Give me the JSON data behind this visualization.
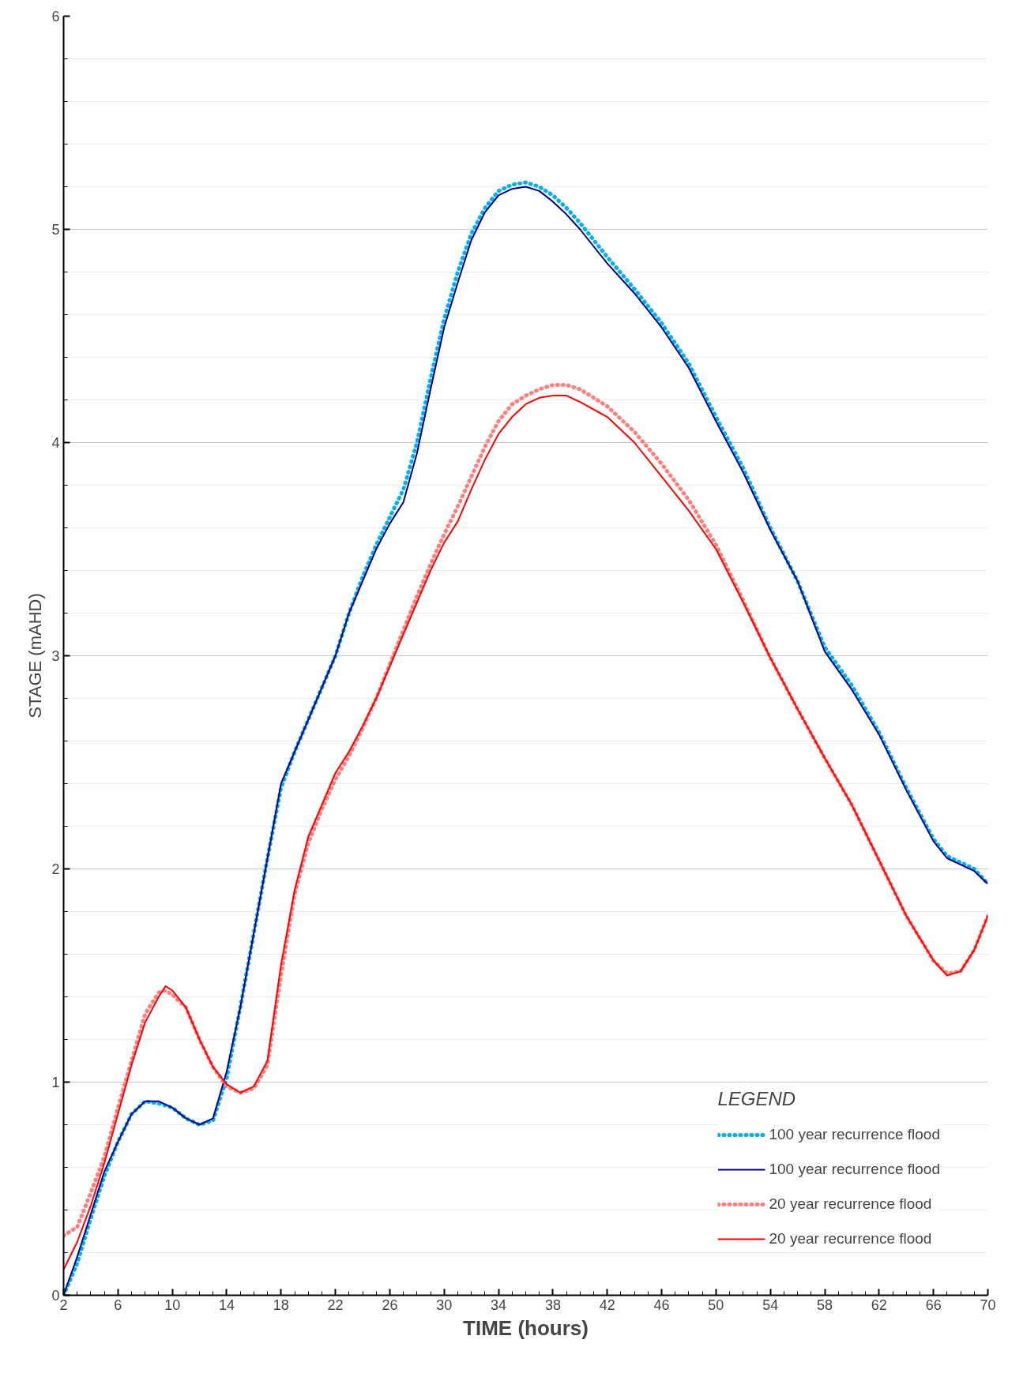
{
  "chart_data": {
    "type": "line",
    "xlabel": "TIME (hours)",
    "ylabel": "STAGE (mAHD)",
    "legend_title": "LEGEND",
    "legend": "bottom right",
    "grid": "y",
    "marker": "none",
    "xlim": [
      2,
      70
    ],
    "ylim": [
      0,
      6
    ],
    "xticks": [
      2,
      {
        "value": 3,
        "label": null
      },
      {
        "value": 4,
        "label": null
      },
      {
        "value": 5,
        "label": null
      },
      6,
      {
        "value": 7,
        "label": null
      },
      {
        "value": 8,
        "label": null
      },
      {
        "value": 9,
        "label": null
      },
      10,
      {
        "value": 11,
        "label": null
      },
      {
        "value": 12,
        "label": null
      },
      {
        "value": 13,
        "label": null
      },
      14,
      {
        "value": 15,
        "label": null
      },
      {
        "value": 16,
        "label": null
      },
      {
        "value": 17,
        "label": null
      },
      18,
      {
        "value": 19,
        "label": null
      },
      {
        "value": 20,
        "label": null
      },
      {
        "value": 21,
        "label": null
      },
      22,
      {
        "value": 23,
        "label": null
      },
      {
        "value": 24,
        "label": null
      },
      {
        "value": 25,
        "label": null
      },
      26,
      {
        "value": 27,
        "label": null
      },
      {
        "value": 28,
        "label": null
      },
      {
        "value": 29,
        "label": null
      },
      30,
      {
        "value": 31,
        "label": null
      },
      {
        "value": 32,
        "label": null
      },
      {
        "value": 33,
        "label": null
      },
      34,
      {
        "value": 35,
        "label": null
      },
      {
        "value": 36,
        "label": null
      },
      {
        "value": 37,
        "label": null
      },
      38,
      {
        "value": 39,
        "label": null
      },
      {
        "value": 40,
        "label": null
      },
      {
        "value": 41,
        "label": null
      },
      42,
      {
        "value": 43,
        "label": null
      },
      {
        "value": 44,
        "label": null
      },
      {
        "value": 45,
        "label": null
      },
      46,
      {
        "value": 47,
        "label": null
      },
      {
        "value": 48,
        "label": null
      },
      {
        "value": 49,
        "label": null
      },
      50,
      {
        "value": 51,
        "label": null
      },
      {
        "value": 52,
        "label": null
      },
      {
        "value": 53,
        "label": null
      },
      54,
      {
        "value": 55,
        "label": null
      },
      {
        "value": 56,
        "label": null
      },
      {
        "value": 57,
        "label": null
      },
      58,
      {
        "value": 59,
        "label": null
      },
      {
        "value": 60,
        "label": null
      },
      {
        "value": 61,
        "label": null
      },
      62,
      {
        "value": 63,
        "label": null
      },
      {
        "value": 64,
        "label": null
      },
      {
        "value": 65,
        "label": null
      },
      66,
      {
        "value": 67,
        "label": null
      },
      {
        "value": 68,
        "label": null
      },
      {
        "value": 69,
        "label": null
      },
      70
    ],
    "yticks": [
      0,
      {
        "value": 0.2,
        "label": null
      },
      {
        "value": 0.4,
        "label": null
      },
      {
        "value": 0.6,
        "label": null
      },
      {
        "value": 0.8,
        "label": null
      },
      1,
      {
        "value": 1.2,
        "label": null
      },
      {
        "value": 1.4,
        "label": null
      },
      {
        "value": 1.6,
        "label": null
      },
      {
        "value": 1.8,
        "label": null
      },
      2,
      {
        "value": 2.2,
        "label": null
      },
      {
        "value": 2.4,
        "label": null
      },
      {
        "value": 2.6,
        "label": null
      },
      {
        "value": 2.8,
        "label": null
      },
      3,
      {
        "value": 3.2,
        "label": null
      },
      {
        "value": 3.4,
        "label": null
      },
      {
        "value": 3.6,
        "label": null
      },
      {
        "value": 3.8,
        "label": null
      },
      4,
      {
        "value": 4.2,
        "label": null
      },
      {
        "value": 4.4,
        "label": null
      },
      {
        "value": 4.6,
        "label": null
      },
      {
        "value": 4.8,
        "label": null
      },
      5,
      {
        "value": 5.2,
        "label": null
      },
      {
        "value": 5.4,
        "label": null
      },
      {
        "value": 5.6,
        "label": null
      },
      {
        "value": 5.8,
        "label": null
      },
      6
    ],
    "series": [
      {
        "name": "100 year recurrence flood",
        "color": "#00b0f0",
        "line_style": "dotted",
        "x": [
          2,
          3,
          4,
          5,
          6,
          7,
          8,
          9,
          10,
          11,
          12,
          13,
          14,
          15,
          16,
          17,
          18,
          19,
          20,
          21,
          22,
          23,
          24,
          25,
          26,
          27,
          28,
          29,
          30,
          31,
          32,
          33,
          34,
          35,
          36,
          37,
          38,
          39,
          40,
          42,
          44,
          46,
          48,
          50,
          52,
          54,
          56,
          58,
          60,
          62,
          64,
          66,
          67,
          68,
          69,
          70
        ],
        "values": [
          0,
          0.15,
          0.36,
          0.56,
          0.72,
          0.85,
          0.91,
          0.9,
          0.88,
          0.83,
          0.8,
          0.82,
          1.02,
          1.35,
          1.7,
          2.05,
          2.38,
          2.55,
          2.7,
          2.85,
          3.0,
          3.2,
          3.37,
          3.52,
          3.65,
          3.78,
          4.0,
          4.3,
          4.58,
          4.8,
          4.98,
          5.1,
          5.18,
          5.21,
          5.22,
          5.2,
          5.16,
          5.1,
          5.03,
          4.87,
          4.72,
          4.56,
          4.37,
          4.12,
          3.88,
          3.6,
          3.35,
          3.04,
          2.86,
          2.64,
          2.38,
          2.14,
          2.06,
          2.03,
          2.0,
          1.93
        ]
      },
      {
        "name": "100 year recurrence flood",
        "color": "#000080",
        "line_style": "solid",
        "x": [
          2,
          3,
          4,
          5,
          6,
          7,
          8,
          9,
          10,
          11,
          12,
          13,
          14,
          15,
          16,
          17,
          18,
          19,
          20,
          21,
          22,
          23,
          24,
          25,
          26,
          27,
          28,
          29,
          30,
          31,
          32,
          33,
          34,
          35,
          36,
          37,
          38,
          39,
          40,
          42,
          44,
          46,
          48,
          50,
          52,
          54,
          56,
          58,
          60,
          62,
          64,
          66,
          67,
          68,
          69,
          70
        ],
        "values": [
          0,
          0.18,
          0.38,
          0.58,
          0.72,
          0.85,
          0.91,
          0.91,
          0.88,
          0.83,
          0.8,
          0.83,
          1.05,
          1.35,
          1.7,
          2.05,
          2.4,
          2.55,
          2.7,
          2.85,
          3.0,
          3.2,
          3.35,
          3.5,
          3.62,
          3.72,
          3.95,
          4.25,
          4.54,
          4.75,
          4.95,
          5.08,
          5.16,
          5.19,
          5.2,
          5.18,
          5.13,
          5.07,
          5.0,
          4.84,
          4.7,
          4.54,
          4.35,
          4.1,
          3.86,
          3.59,
          3.35,
          3.02,
          2.84,
          2.63,
          2.37,
          2.13,
          2.05,
          2.02,
          1.99,
          1.93
        ]
      },
      {
        "name": "20 year recurrence flood",
        "color": "#ff7f7f",
        "line_style": "dotted",
        "x": [
          2,
          3,
          4,
          5,
          6,
          7,
          8,
          9,
          9.5,
          10,
          11,
          12,
          13,
          14,
          15,
          16,
          17,
          18,
          19,
          20,
          21,
          22,
          23,
          24,
          25,
          26,
          27,
          28,
          29,
          30,
          31,
          32,
          33,
          34,
          35,
          36,
          37,
          38,
          39,
          40,
          42,
          44,
          46,
          48,
          50,
          52,
          54,
          56,
          58,
          60,
          62,
          64,
          66,
          67,
          68,
          69,
          70
        ],
        "values": [
          0.28,
          0.32,
          0.48,
          0.65,
          0.88,
          1.1,
          1.32,
          1.42,
          1.43,
          1.41,
          1.35,
          1.2,
          1.07,
          0.98,
          0.95,
          0.97,
          1.08,
          1.5,
          1.88,
          2.12,
          2.28,
          2.42,
          2.53,
          2.66,
          2.8,
          2.96,
          3.12,
          3.28,
          3.43,
          3.57,
          3.7,
          3.84,
          3.98,
          4.1,
          4.18,
          4.22,
          4.25,
          4.27,
          4.27,
          4.25,
          4.17,
          4.05,
          3.9,
          3.73,
          3.52,
          3.26,
          2.99,
          2.75,
          2.52,
          2.3,
          2.04,
          1.78,
          1.57,
          1.51,
          1.52,
          1.62,
          1.78
        ]
      },
      {
        "name": "20 year recurrence flood",
        "color": "#ff0000",
        "line_style": "solid",
        "x": [
          2,
          3,
          4,
          5,
          6,
          7,
          8,
          9,
          9.5,
          10,
          11,
          12,
          13,
          14,
          15,
          16,
          17,
          18,
          19,
          20,
          21,
          22,
          23,
          24,
          25,
          26,
          27,
          28,
          29,
          30,
          31,
          32,
          33,
          34,
          35,
          36,
          37,
          38,
          39,
          40,
          42,
          44,
          46,
          48,
          50,
          52,
          54,
          56,
          58,
          60,
          62,
          64,
          66,
          67,
          68,
          69,
          70
        ],
        "values": [
          0.12,
          0.25,
          0.42,
          0.62,
          0.85,
          1.08,
          1.28,
          1.4,
          1.45,
          1.43,
          1.35,
          1.2,
          1.07,
          0.99,
          0.95,
          0.98,
          1.1,
          1.55,
          1.9,
          2.15,
          2.3,
          2.45,
          2.55,
          2.67,
          2.8,
          2.95,
          3.1,
          3.25,
          3.4,
          3.53,
          3.63,
          3.78,
          3.92,
          4.04,
          4.12,
          4.18,
          4.21,
          4.22,
          4.22,
          4.19,
          4.12,
          4.0,
          3.84,
          3.68,
          3.5,
          3.25,
          2.99,
          2.75,
          2.52,
          2.3,
          2.04,
          1.78,
          1.57,
          1.5,
          1.52,
          1.62,
          1.78
        ]
      }
    ]
  }
}
